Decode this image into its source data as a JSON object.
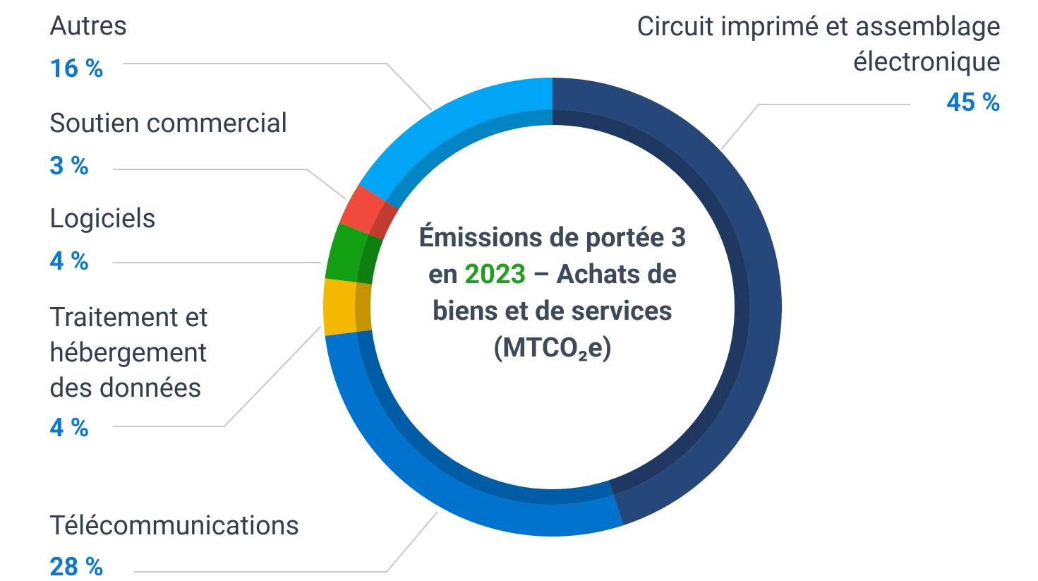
{
  "chart_data": {
    "type": "donut",
    "center_title": {
      "before": "Émissions de portée 3 en",
      "year": "2023",
      "after": "– Achats de biens et de services (MTCO₂e)"
    },
    "categories": [
      "Circuit imprimé et assemblage électronique",
      "Télécommunications",
      "Traitement et hébergement des données",
      "Logiciels",
      "Soutien commercial",
      "Autres"
    ],
    "values": [
      45,
      28,
      4,
      4,
      3,
      16
    ],
    "value_labels": [
      "45 %",
      "28 %",
      "4 %",
      "4 %",
      "3 %",
      "16 %"
    ],
    "colors": [
      "#26477a",
      "#0073cf",
      "#f5b800",
      "#12a012",
      "#f04a3c",
      "#00a6f5"
    ]
  }
}
